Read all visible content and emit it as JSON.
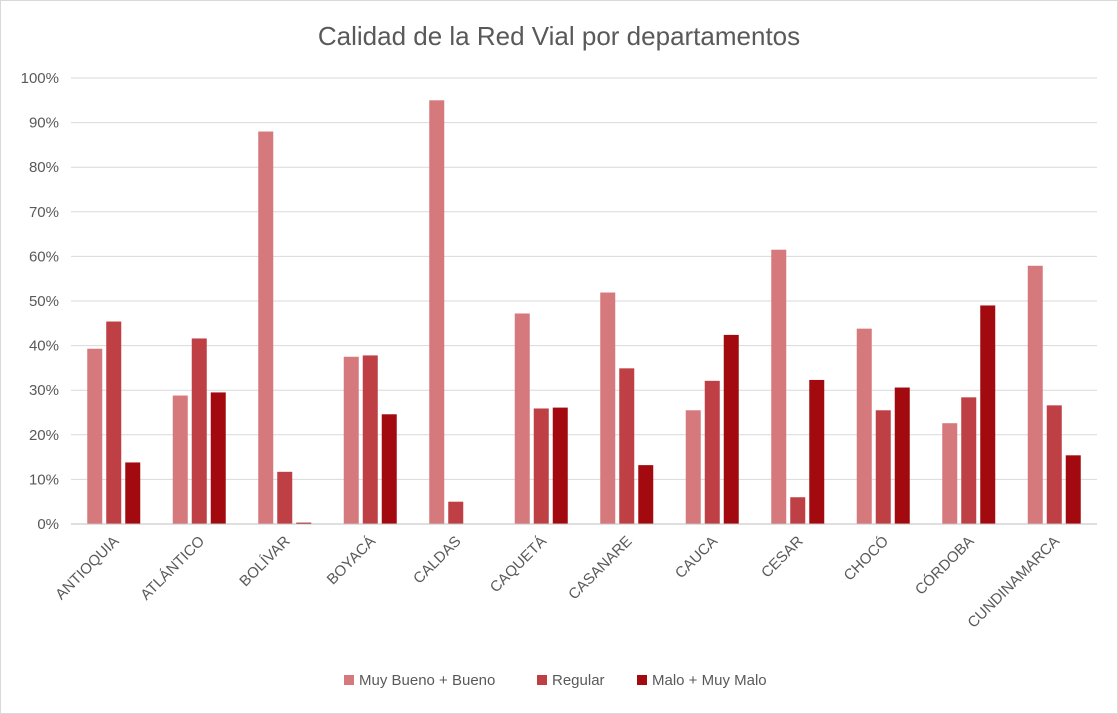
{
  "chart_data": {
    "type": "bar",
    "title": "Calidad de la Red Vial por departamentos",
    "categories": [
      "ANTIOQUIA",
      "ATLÁNTICO",
      "BOLÍVAR",
      "BOYACÁ",
      "CALDAS",
      "CAQUETÁ",
      "CASANARE",
      "CAUCA",
      "CESAR",
      "CHOCÓ",
      "CÓRDOBA",
      "CUNDINAMARCA"
    ],
    "series": [
      {
        "name": "Muy Bueno + Bueno",
        "color": "#D6797D",
        "values": [
          39.3,
          28.8,
          88.0,
          37.5,
          95.0,
          47.2,
          51.9,
          25.5,
          61.5,
          43.8,
          22.6,
          57.9
        ]
      },
      {
        "name": "Regular",
        "color": "#BE3F44",
        "values": [
          45.4,
          41.6,
          11.7,
          37.8,
          5.0,
          25.9,
          34.9,
          32.1,
          6.0,
          25.5,
          28.4,
          26.6
        ]
      },
      {
        "name": "Malo + Muy Malo",
        "color": "#A30A0F",
        "values": [
          13.8,
          29.5,
          0.3,
          24.6,
          0.0,
          26.1,
          13.2,
          42.4,
          32.3,
          30.6,
          49.0,
          15.4
        ]
      }
    ],
    "yticks": [
      "0%",
      "10%",
      "20%",
      "30%",
      "40%",
      "50%",
      "60%",
      "70%",
      "80%",
      "90%",
      "100%"
    ],
    "ylim": [
      0,
      100
    ],
    "grid": true,
    "legend_position": "bottom"
  }
}
